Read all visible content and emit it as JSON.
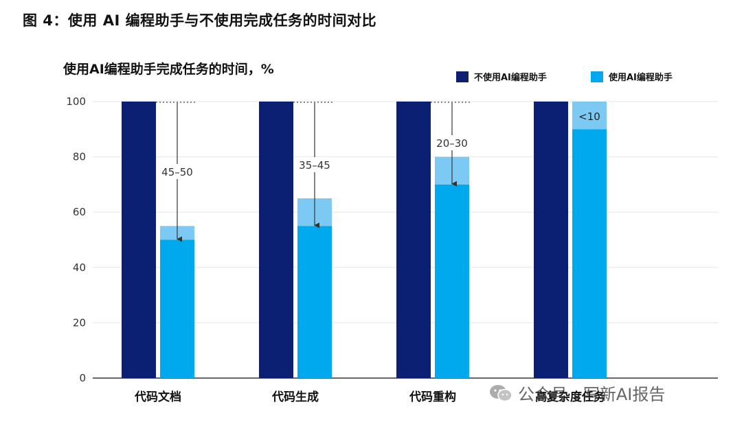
{
  "figure_title": "图 4：使用 AI 编程助手与不使用完成任务的时间对比",
  "chart_title": "使用AI编程助手完成任务的时间，%",
  "watermark": "公众号 · 写新AI报告",
  "colors": {
    "without_ai": "#0b1f73",
    "with_ai": "#00a9ee",
    "with_ai_range": "#7ccaf3",
    "gridline": "#e6e6e6",
    "axis": "#333333"
  },
  "chart_data": {
    "type": "bar",
    "title": "使用AI编程助手完成任务的时间，%",
    "xlabel": "",
    "ylabel": "",
    "ylim": [
      0,
      100
    ],
    "yticks": [
      0,
      20,
      40,
      60,
      80,
      100
    ],
    "grid": true,
    "legend_position": "top-right",
    "categories": [
      "代码文档",
      "代码生成",
      "代码重构",
      "高复杂度任务"
    ],
    "series": [
      {
        "name": "不使用AI编程助手",
        "values": [
          100,
          100,
          100,
          100
        ]
      },
      {
        "name": "使用AI编程助手",
        "values": [
          50,
          55,
          70,
          90
        ],
        "range_top": [
          55,
          65,
          80,
          100
        ]
      }
    ],
    "annotations": [
      "45–50",
      "35–45",
      "20–30",
      "<10"
    ]
  }
}
